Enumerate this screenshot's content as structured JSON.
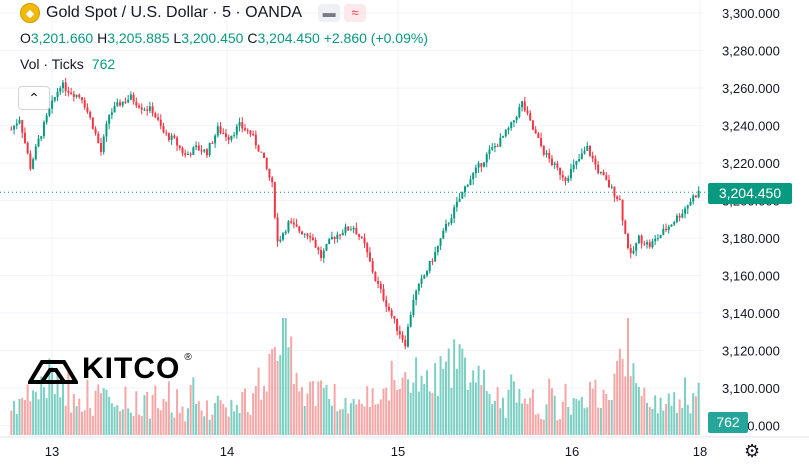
{
  "header": {
    "title": "Gold Spot / U.S. Dollar · 5 · OANDA",
    "open_label": "O",
    "open": "3,201.660",
    "high_label": "H",
    "high": "3,205.885",
    "low_label": "L",
    "low": "3,200.450",
    "close_label": "C",
    "close": "3,204.450",
    "change": "+2.860 (+0.09%)",
    "volume_label": "Vol · Ticks",
    "volume_value": "762"
  },
  "logo_text": "KITCO",
  "logo_mark": "®",
  "current_price_tag": "3,204.450",
  "current_volume_tag": "762",
  "colors": {
    "up": "#089981",
    "down": "#f23645",
    "vol_up": "#7ccfc3",
    "vol_down": "#f5a6a6",
    "grid": "#f0f3fa"
  },
  "chart_data": {
    "type": "candlestick",
    "title": "Gold Spot / U.S. Dollar · 5 · OANDA",
    "interval": "5",
    "y_ticks": [
      "3,300.000",
      "3,280.000",
      "3,260.000",
      "3,240.000",
      "3,220.000",
      "3,200.000",
      "3,180.000",
      "3,160.000",
      "3,140.000",
      "3,120.000",
      "3,100.000",
      "3,080.000"
    ],
    "ylim": [
      3075,
      3307
    ],
    "x_ticks": [
      "13",
      "14",
      "15",
      "16",
      "18"
    ],
    "last_price": 3204.45,
    "price_path": [
      [
        0,
        3238
      ],
      [
        3,
        3244
      ],
      [
        7,
        3218
      ],
      [
        10,
        3232
      ],
      [
        14,
        3248
      ],
      [
        18,
        3262
      ],
      [
        22,
        3258
      ],
      [
        26,
        3255
      ],
      [
        30,
        3240
      ],
      [
        33,
        3226
      ],
      [
        36,
        3246
      ],
      [
        40,
        3252
      ],
      [
        44,
        3255
      ],
      [
        48,
        3250
      ],
      [
        52,
        3248
      ],
      [
        56,
        3236
      ],
      [
        60,
        3232
      ],
      [
        64,
        3224
      ],
      [
        68,
        3228
      ],
      [
        72,
        3226
      ],
      [
        76,
        3238
      ],
      [
        80,
        3234
      ],
      [
        84,
        3240
      ],
      [
        88,
        3236
      ],
      [
        92,
        3225
      ],
      [
        96,
        3208
      ],
      [
        98,
        3178
      ],
      [
        102,
        3188
      ],
      [
        106,
        3184
      ],
      [
        110,
        3182
      ],
      [
        114,
        3170
      ],
      [
        118,
        3180
      ],
      [
        122,
        3184
      ],
      [
        126,
        3186
      ],
      [
        130,
        3176
      ],
      [
        134,
        3158
      ],
      [
        138,
        3145
      ],
      [
        142,
        3132
      ],
      [
        145,
        3124
      ],
      [
        148,
        3148
      ],
      [
        152,
        3160
      ],
      [
        156,
        3172
      ],
      [
        160,
        3186
      ],
      [
        164,
        3198
      ],
      [
        168,
        3210
      ],
      [
        172,
        3218
      ],
      [
        176,
        3226
      ],
      [
        180,
        3232
      ],
      [
        184,
        3240
      ],
      [
        188,
        3252
      ],
      [
        192,
        3238
      ],
      [
        196,
        3226
      ],
      [
        200,
        3218
      ],
      [
        204,
        3212
      ],
      [
        208,
        3220
      ],
      [
        212,
        3228
      ],
      [
        216,
        3216
      ],
      [
        220,
        3208
      ],
      [
        224,
        3200
      ],
      [
        226,
        3182
      ],
      [
        228,
        3170
      ],
      [
        231,
        3180
      ],
      [
        235,
        3176
      ],
      [
        239,
        3182
      ],
      [
        243,
        3188
      ],
      [
        247,
        3194
      ],
      [
        251,
        3202
      ],
      [
        253,
        3204.45
      ]
    ],
    "volume_range": [
      0,
      120
    ],
    "volume_bars_count": 254
  }
}
